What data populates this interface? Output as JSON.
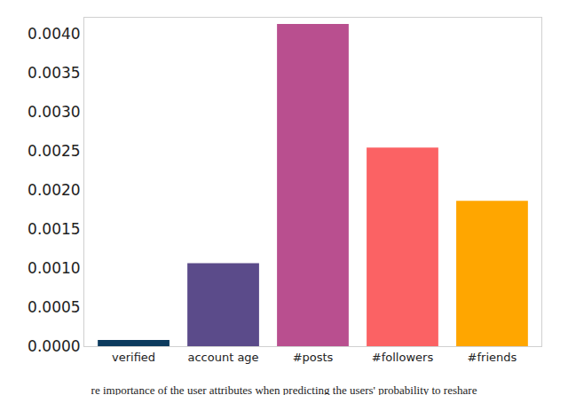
{
  "chart_data": {
    "type": "bar",
    "title": "re importance of the user attributes when predicting the users' probability to reshare",
    "categories": [
      "verified",
      "account age",
      "#posts",
      "#followers",
      "#friends"
    ],
    "values": [
      8e-05,
      0.00106,
      0.00412,
      0.00254,
      0.00186
    ],
    "colors": [
      "#0c3b5e",
      "#5b4b8a",
      "#b94f8f",
      "#fb6264",
      "#ffa600"
    ],
    "ylim": [
      0,
      0.0042
    ],
    "yticks": [
      {
        "value": 0,
        "label": "0.0000"
      },
      {
        "value": 0.0005,
        "label": "0.0005"
      },
      {
        "value": 0.001,
        "label": "0.0010"
      },
      {
        "value": 0.0015,
        "label": "0.0015"
      },
      {
        "value": 0.002,
        "label": "0.0020"
      },
      {
        "value": 0.0025,
        "label": "0.0025"
      },
      {
        "value": 0.003,
        "label": "0.0030"
      },
      {
        "value": 0.0035,
        "label": "0.0035"
      },
      {
        "value": 0.004,
        "label": "0.0040"
      }
    ],
    "grid": false
  }
}
